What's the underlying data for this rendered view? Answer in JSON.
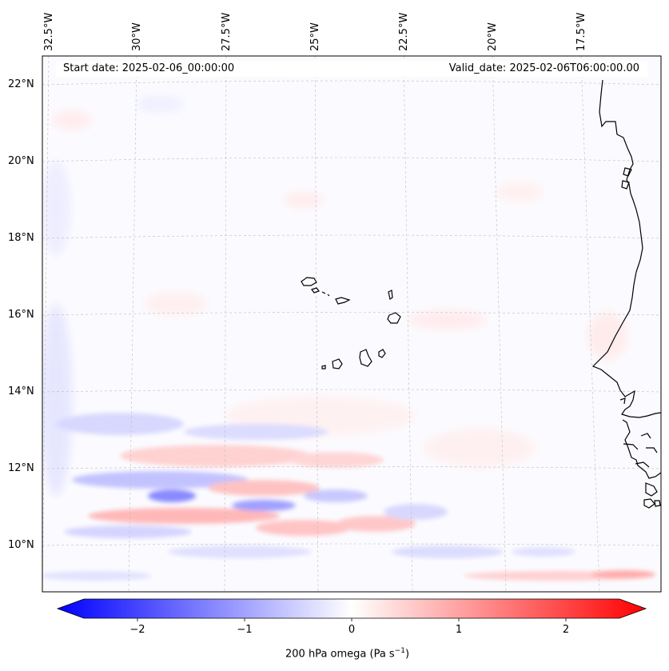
{
  "map": {
    "start_date_label": "Start date: 2025-02-06_00:00:00",
    "valid_date_label": "Valid_date: 2025-02-06T06:00:00.00",
    "lon_labels": [
      "32.5°W",
      "30°W",
      "27.5°W",
      "25°W",
      "22.5°W",
      "20°W",
      "17.5°W"
    ],
    "lat_labels": [
      "22°N",
      "20°N",
      "18°N",
      "16°N",
      "14°N",
      "12°N",
      "10°N"
    ],
    "coastline_color": "#000000",
    "gridline_color": "#bbbbbb"
  },
  "colorbar": {
    "label": "200 hPa omega (Pa s⁻¹)",
    "label_text": "200 hPa omega (Pa s",
    "label_sup": "−1",
    "label_close": ")",
    "ticks": [
      "−2",
      "−1",
      "0",
      "1",
      "2"
    ],
    "tick_values": [
      -2,
      -1,
      0,
      1,
      2
    ],
    "range": [
      -2.5,
      2.5
    ],
    "colors": {
      "min": "#0000ff",
      "mid": "#ffffff",
      "max": "#ff0000"
    }
  }
}
